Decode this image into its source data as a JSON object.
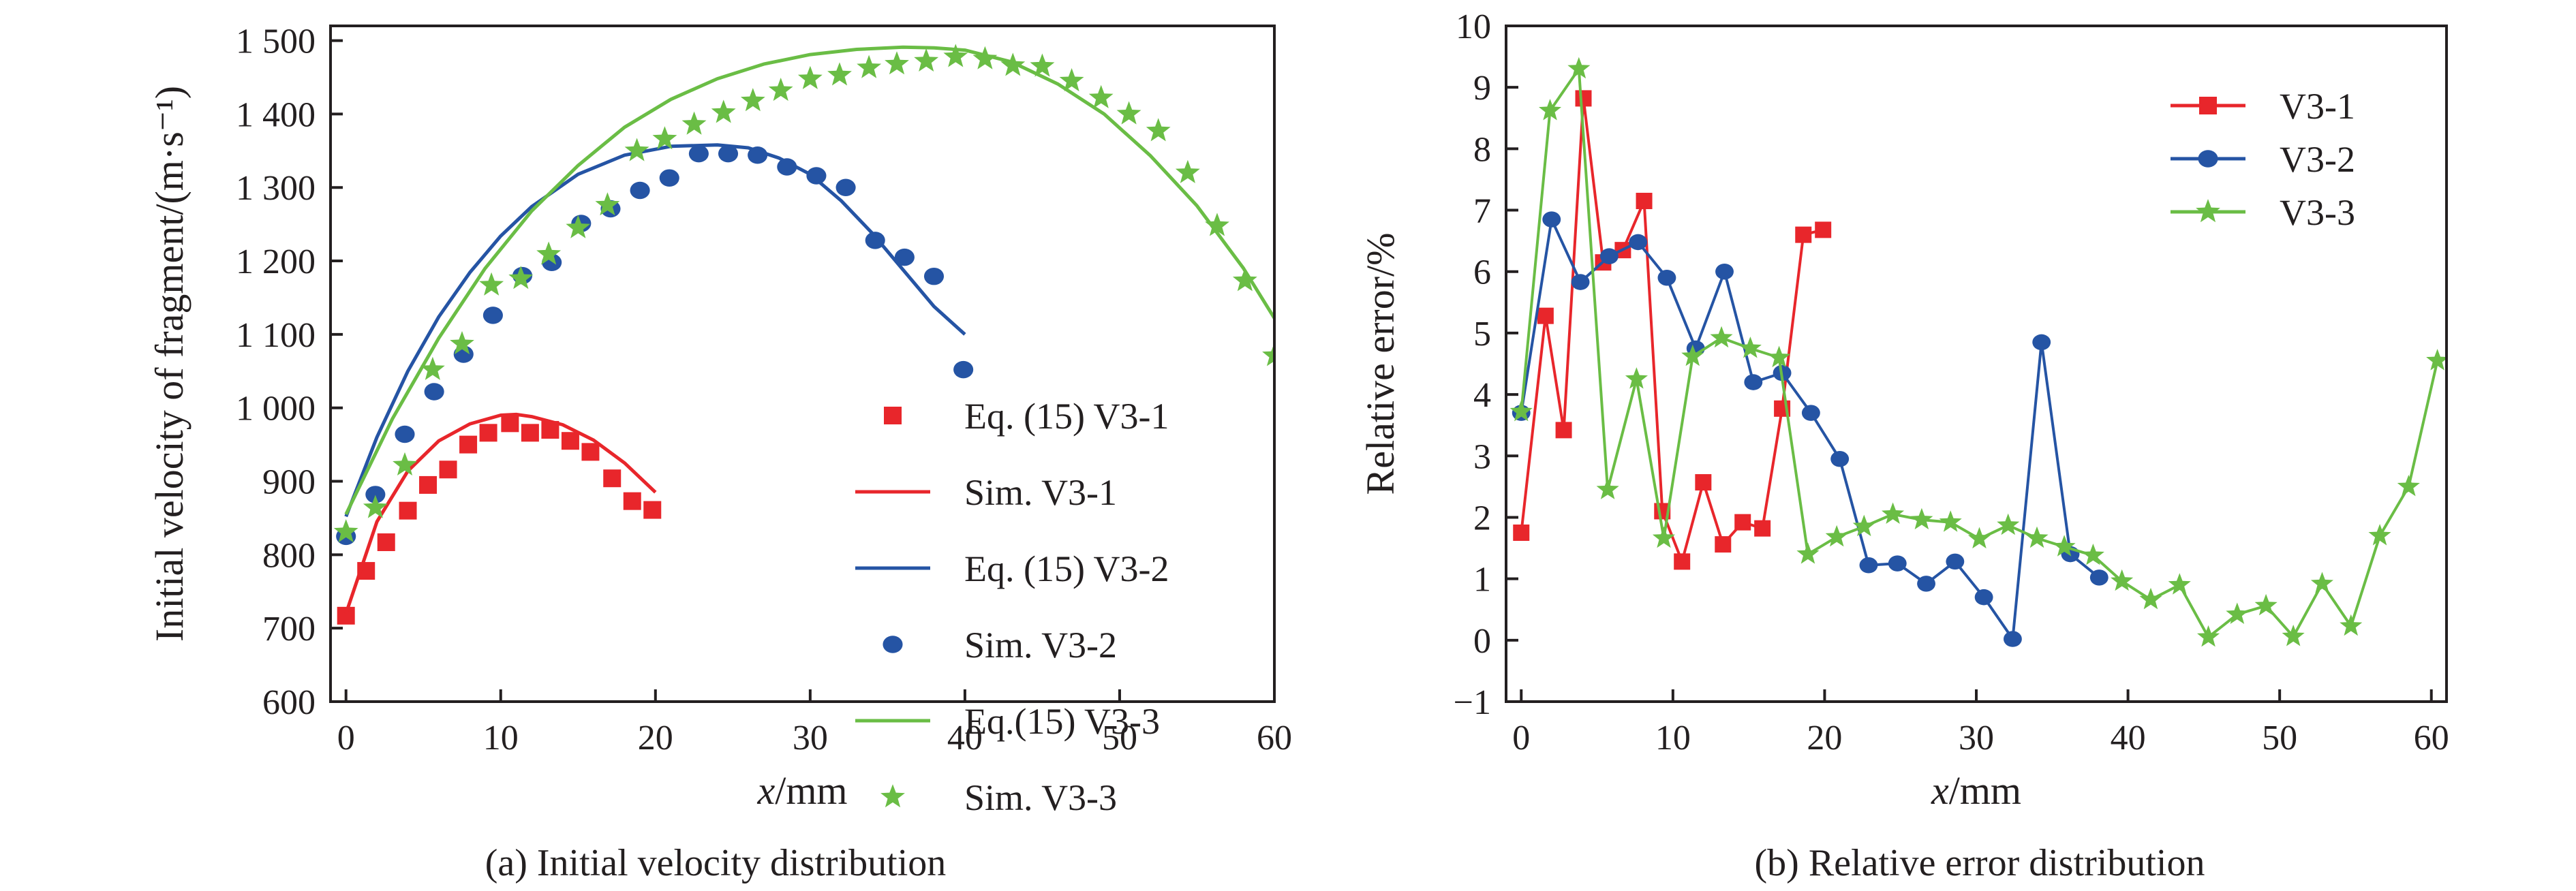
{
  "colors": {
    "v3_1": "#e8262b",
    "v3_2": "#2554a4",
    "v3_3": "#6abd45",
    "axis": "#231f20"
  },
  "chart_data": [
    {
      "type": "scatter",
      "caption": "(a) Initial velocity distribution",
      "xlabel_italic": "x",
      "xlabel_rest": "/mm",
      "ylabel": "Initial velocity of fragment/(m·s⁻¹)",
      "xlim": [
        -1,
        60
      ],
      "ylim": [
        600,
        1520
      ],
      "xticks": [
        0,
        10,
        20,
        30,
        40,
        50,
        60
      ],
      "xtick_labels": [
        "0",
        "10",
        "20",
        "30",
        "40",
        "50",
        "60"
      ],
      "yticks": [
        600,
        700,
        800,
        900,
        1000,
        1100,
        1200,
        1300,
        1400,
        1500
      ],
      "ytick_labels": [
        "600",
        "700",
        "800",
        "900",
        "1 000",
        "1 100",
        "1 200",
        "1 300",
        "1 400",
        "1 500"
      ],
      "legend_position": "lower-right",
      "series": [
        {
          "name": "Eq. (15) V3-1",
          "kind": "markers",
          "marker": "square",
          "color_key": "v3_1",
          "x": [
            0,
            1.3,
            2.6,
            4,
            5.3,
            6.6,
            7.9,
            9.2,
            10.6,
            11.9,
            13.2,
            14.5,
            15.8,
            17.2,
            18.5,
            19.8
          ],
          "y": [
            717,
            778,
            817,
            860,
            895,
            916,
            950,
            966,
            979,
            966,
            970,
            955,
            940,
            904,
            873,
            861
          ]
        },
        {
          "name": "Sim. V3-1",
          "kind": "line",
          "color_key": "v3_1",
          "x": [
            0,
            2,
            4,
            6,
            8,
            10,
            11,
            12,
            14,
            16,
            18,
            20
          ],
          "y": [
            720,
            845,
            914,
            955,
            978,
            990,
            991,
            988,
            977,
            956,
            925,
            885
          ]
        },
        {
          "name": "Eq. (15) V3-2",
          "kind": "line",
          "color_key": "v3_2",
          "x": [
            0,
            2,
            4,
            6,
            8,
            10,
            12,
            15,
            18,
            21,
            24,
            26,
            28,
            30,
            32,
            34,
            36,
            38,
            40
          ],
          "y": [
            852,
            960,
            1050,
            1124,
            1184,
            1234,
            1274,
            1318,
            1344,
            1356,
            1358,
            1354,
            1340,
            1318,
            1282,
            1238,
            1188,
            1138,
            1100
          ]
        },
        {
          "name": "Sim. V3-2",
          "kind": "markers",
          "marker": "circle",
          "color_key": "v3_2",
          "x": [
            0,
            1.9,
            3.8,
            5.7,
            7.6,
            9.5,
            11.4,
            13.3,
            15.2,
            17.1,
            19,
            20.9,
            22.8,
            24.7,
            26.6,
            28.5,
            30.4,
            32.3,
            34.2,
            36.1,
            38,
            39.9
          ],
          "y": [
            825,
            882,
            964,
            1022,
            1073,
            1126,
            1180,
            1198,
            1251,
            1271,
            1296,
            1313,
            1346,
            1346,
            1344,
            1328,
            1316,
            1300,
            1228,
            1205,
            1179,
            1052
          ]
        },
        {
          "name": "Eq.(15) V3-3",
          "kind": "line",
          "color_key": "v3_3",
          "x": [
            0,
            3,
            6,
            9,
            12,
            15,
            18,
            21,
            24,
            27,
            30,
            33,
            36,
            38,
            40,
            43,
            46,
            49,
            52,
            55,
            58,
            60
          ],
          "y": [
            855,
            985,
            1095,
            1190,
            1268,
            1330,
            1382,
            1420,
            1448,
            1468,
            1481,
            1488,
            1491,
            1490,
            1487,
            1471,
            1441,
            1400,
            1343,
            1275,
            1190,
            1122
          ]
        },
        {
          "name": "Sim. V3-3",
          "kind": "markers",
          "marker": "star",
          "color_key": "v3_3",
          "x": [
            0,
            1.9,
            3.8,
            5.6,
            7.5,
            9.4,
            11.3,
            13.1,
            15,
            16.9,
            18.8,
            20.6,
            22.5,
            24.4,
            26.3,
            28.1,
            30,
            31.9,
            33.8,
            35.6,
            37.5,
            39.4,
            41.3,
            43.1,
            45,
            46.9,
            48.8,
            50.6,
            52.5,
            54.4,
            56.3,
            58.1,
            60
          ],
          "y": [
            831,
            864,
            922,
            1052,
            1087,
            1167,
            1176,
            1209,
            1245,
            1276,
            1350,
            1366,
            1386,
            1402,
            1418,
            1432,
            1448,
            1453,
            1463,
            1468,
            1472,
            1478,
            1475,
            1466,
            1465,
            1445,
            1422,
            1400,
            1377,
            1320,
            1248,
            1173,
            1071
          ]
        }
      ]
    },
    {
      "type": "line",
      "caption": "(b) Relative error distribution",
      "xlabel_italic": "x",
      "xlabel_rest": "/mm",
      "ylabel": "Relative error/%",
      "xlim": [
        -1,
        61
      ],
      "ylim": [
        -1,
        10
      ],
      "xticks": [
        0,
        10,
        20,
        30,
        40,
        50,
        60
      ],
      "xtick_labels": [
        "0",
        "10",
        "20",
        "30",
        "40",
        "50",
        "60"
      ],
      "yticks": [
        -1,
        0,
        1,
        2,
        3,
        4,
        5,
        6,
        7,
        8,
        9,
        10
      ],
      "ytick_labels": [
        "−1",
        "0",
        "1",
        "2",
        "3",
        "4",
        "5",
        "6",
        "7",
        "8",
        "9",
        "10"
      ],
      "legend_position": "top-right",
      "series": [
        {
          "name": "V3-1",
          "marker": "square",
          "color_key": "v3_1",
          "x": [
            0,
            1.6,
            2.8,
            4.1,
            5.4,
            6.7,
            8.1,
            9.3,
            10.6,
            12,
            13.3,
            14.6,
            15.9,
            17.2,
            18.6,
            19.9
          ],
          "y": [
            1.75,
            5.28,
            3.42,
            8.82,
            6.15,
            6.35,
            7.15,
            2.1,
            1.28,
            2.57,
            1.56,
            1.92,
            1.82,
            3.77,
            6.6,
            6.68
          ]
        },
        {
          "name": "V3-2",
          "marker": "circle",
          "color_key": "v3_2",
          "x": [
            0,
            2,
            3.9,
            5.8,
            7.7,
            9.6,
            11.5,
            13.4,
            15.3,
            17.2,
            19.1,
            21,
            22.9,
            24.8,
            26.7,
            28.6,
            30.5,
            32.4,
            34.3,
            36.2,
            38.1
          ],
          "y": [
            3.7,
            6.85,
            5.83,
            6.25,
            6.48,
            5.9,
            4.75,
            6.0,
            4.2,
            4.35,
            3.7,
            2.95,
            1.22,
            1.25,
            0.92,
            1.28,
            0.7,
            0.02,
            4.85,
            1.4,
            1.02
          ]
        },
        {
          "name": "V3-3",
          "marker": "star",
          "color_key": "v3_3",
          "x": [
            0,
            1.9,
            3.8,
            5.7,
            7.6,
            9.4,
            11.3,
            13.2,
            15.1,
            17,
            18.9,
            20.8,
            22.6,
            24.5,
            26.4,
            28.3,
            30.2,
            32.1,
            34,
            35.8,
            37.7,
            39.6,
            41.5,
            43.4,
            45.3,
            47.2,
            49.1,
            50.9,
            52.8,
            54.7,
            56.6,
            58.5,
            60.4
          ],
          "y": [
            3.72,
            8.62,
            9.3,
            2.45,
            4.25,
            1.66,
            4.62,
            4.92,
            4.75,
            4.6,
            1.4,
            1.68,
            1.85,
            2.05,
            1.96,
            1.92,
            1.65,
            1.87,
            1.66,
            1.52,
            1.38,
            0.96,
            0.66,
            0.9,
            0.05,
            0.42,
            0.56,
            0.06,
            0.92,
            0.23,
            1.7,
            2.5,
            4.55
          ]
        }
      ]
    }
  ]
}
